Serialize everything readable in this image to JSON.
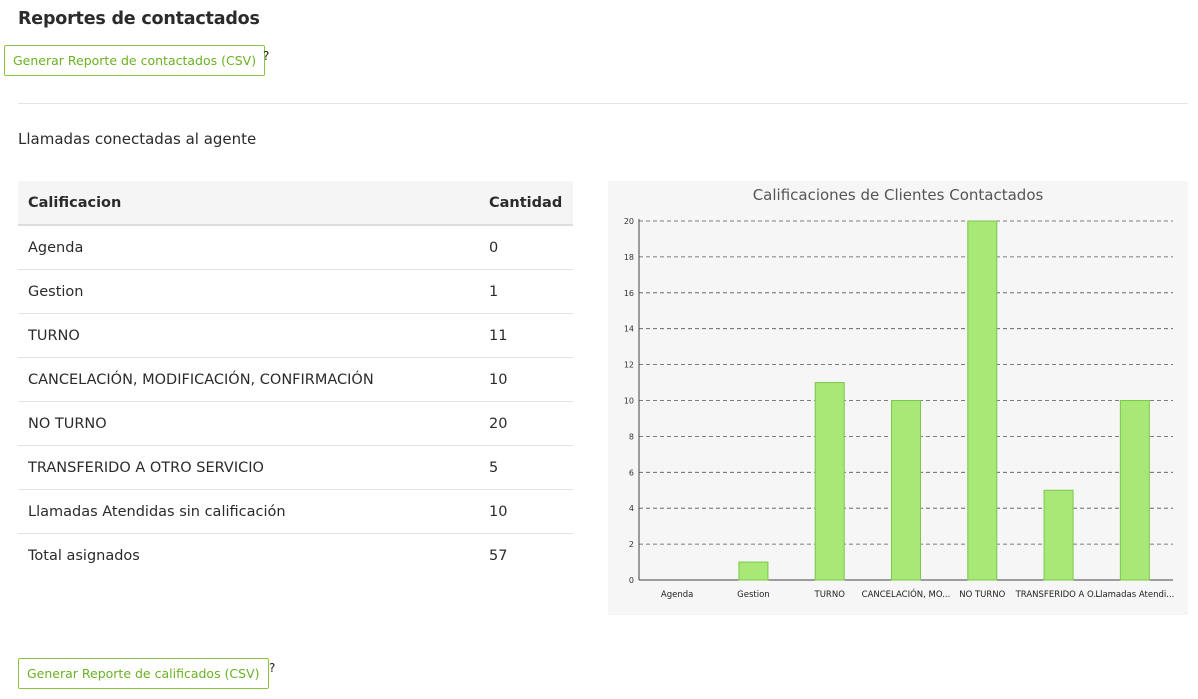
{
  "page": {
    "title": "Reportes de contactados"
  },
  "actions": {
    "contactados_button": "Generar Reporte de contactados (CSV)",
    "calificados_button": "Generar Reporte de calificados (CSV)",
    "help_mark": "?"
  },
  "section": {
    "title": "Llamadas conectadas al agente"
  },
  "table": {
    "headers": [
      "Calificacion",
      "Cantidad"
    ],
    "rows": [
      {
        "label": "Agenda",
        "value": "0"
      },
      {
        "label": "Gestion",
        "value": "1"
      },
      {
        "label": "TURNO",
        "value": "11"
      },
      {
        "label": "CANCELACIÓN, MODIFICACIÓN, CONFIRMACIÓN",
        "value": "10"
      },
      {
        "label": "NO TURNO",
        "value": "20"
      },
      {
        "label": "TRANSFERIDO A OTRO SERVICIO",
        "value": "5"
      },
      {
        "label": "Llamadas Atendidas sin calificación",
        "value": "10"
      },
      {
        "label": "Total asignados",
        "value": "57"
      }
    ]
  },
  "colors": {
    "accent": "#6ab123",
    "bar_fill": "#a7e877",
    "bar_stroke": "#7cc84b"
  },
  "chart_data": {
    "type": "bar",
    "title": "Calificaciones de Clientes Contactados",
    "categories": [
      "Agenda",
      "Gestion",
      "TURNO",
      "CANCELACIÓN, MO...",
      "NO TURNO",
      "TRANSFERIDO A O...",
      "Llamadas Atendi..."
    ],
    "values": [
      0,
      1,
      11,
      10,
      20,
      5,
      10
    ],
    "ylim": [
      0,
      20
    ],
    "yticks": [
      0,
      2,
      4,
      6,
      8,
      10,
      12,
      14,
      16,
      18,
      20
    ],
    "grid": true,
    "xlabel": "",
    "ylabel": ""
  }
}
